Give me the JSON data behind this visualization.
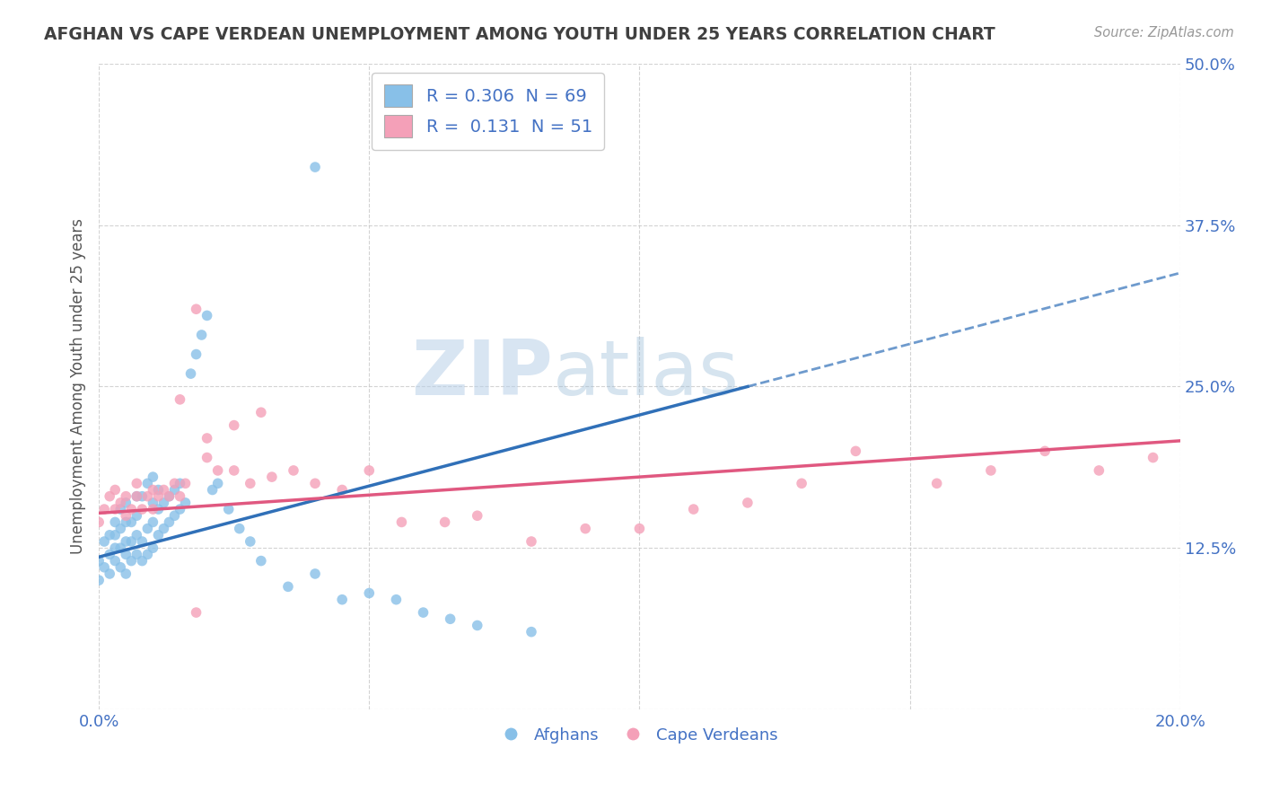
{
  "title": "AFGHAN VS CAPE VERDEAN UNEMPLOYMENT AMONG YOUTH UNDER 25 YEARS CORRELATION CHART",
  "source": "Source: ZipAtlas.com",
  "ylabel": "Unemployment Among Youth under 25 years",
  "xlim": [
    0.0,
    0.2
  ],
  "ylim": [
    0.0,
    0.5
  ],
  "xticks": [
    0.0,
    0.05,
    0.1,
    0.15,
    0.2
  ],
  "xtick_labels": [
    "0.0%",
    "",
    "",
    "",
    "20.0%"
  ],
  "yticks": [
    0.0,
    0.125,
    0.25,
    0.375,
    0.5
  ],
  "ytick_labels": [
    "",
    "12.5%",
    "25.0%",
    "37.5%",
    "50.0%"
  ],
  "blue_color": "#88c0e8",
  "pink_color": "#f4a0b8",
  "blue_line_color": "#3070b8",
  "pink_line_color": "#e05880",
  "watermark_zip": "ZIP",
  "watermark_atlas": "atlas",
  "legend_blue_r": "0.306",
  "legend_blue_n": "69",
  "legend_pink_r": "0.131",
  "legend_pink_n": "51",
  "blue_label": "Afghans",
  "pink_label": "Cape Verdeans",
  "grid_color": "#c8c8c8",
  "background_color": "#ffffff",
  "title_color": "#404040",
  "axis_label_color": "#555555",
  "tick_label_color": "#4472c4",
  "blue_scatter_x": [
    0.0,
    0.0,
    0.001,
    0.001,
    0.002,
    0.002,
    0.002,
    0.003,
    0.003,
    0.003,
    0.003,
    0.004,
    0.004,
    0.004,
    0.004,
    0.005,
    0.005,
    0.005,
    0.005,
    0.005,
    0.006,
    0.006,
    0.006,
    0.007,
    0.007,
    0.007,
    0.007,
    0.008,
    0.008,
    0.008,
    0.009,
    0.009,
    0.009,
    0.01,
    0.01,
    0.01,
    0.01,
    0.011,
    0.011,
    0.011,
    0.012,
    0.012,
    0.013,
    0.013,
    0.014,
    0.014,
    0.015,
    0.015,
    0.016,
    0.017,
    0.018,
    0.019,
    0.02,
    0.021,
    0.022,
    0.024,
    0.026,
    0.028,
    0.03,
    0.035,
    0.04,
    0.045,
    0.05,
    0.055,
    0.06,
    0.065,
    0.07,
    0.08,
    0.04
  ],
  "blue_scatter_y": [
    0.1,
    0.115,
    0.11,
    0.13,
    0.105,
    0.12,
    0.135,
    0.115,
    0.125,
    0.135,
    0.145,
    0.11,
    0.125,
    0.14,
    0.155,
    0.105,
    0.12,
    0.13,
    0.145,
    0.16,
    0.115,
    0.13,
    0.145,
    0.12,
    0.135,
    0.15,
    0.165,
    0.115,
    0.13,
    0.165,
    0.12,
    0.14,
    0.175,
    0.125,
    0.145,
    0.16,
    0.18,
    0.135,
    0.155,
    0.17,
    0.14,
    0.16,
    0.145,
    0.165,
    0.15,
    0.17,
    0.155,
    0.175,
    0.16,
    0.26,
    0.275,
    0.29,
    0.305,
    0.17,
    0.175,
    0.155,
    0.14,
    0.13,
    0.115,
    0.095,
    0.105,
    0.085,
    0.09,
    0.085,
    0.075,
    0.07,
    0.065,
    0.06,
    0.42
  ],
  "pink_scatter_x": [
    0.0,
    0.001,
    0.002,
    0.003,
    0.003,
    0.004,
    0.005,
    0.005,
    0.006,
    0.007,
    0.007,
    0.008,
    0.009,
    0.01,
    0.01,
    0.011,
    0.012,
    0.013,
    0.014,
    0.015,
    0.016,
    0.018,
    0.02,
    0.022,
    0.025,
    0.028,
    0.032,
    0.036,
    0.04,
    0.045,
    0.05,
    0.056,
    0.064,
    0.07,
    0.08,
    0.09,
    0.1,
    0.11,
    0.12,
    0.13,
    0.14,
    0.155,
    0.165,
    0.175,
    0.185,
    0.195,
    0.015,
    0.02,
    0.025,
    0.03,
    0.018
  ],
  "pink_scatter_y": [
    0.145,
    0.155,
    0.165,
    0.155,
    0.17,
    0.16,
    0.15,
    0.165,
    0.155,
    0.165,
    0.175,
    0.155,
    0.165,
    0.155,
    0.17,
    0.165,
    0.17,
    0.165,
    0.175,
    0.165,
    0.175,
    0.31,
    0.195,
    0.185,
    0.185,
    0.175,
    0.18,
    0.185,
    0.175,
    0.17,
    0.185,
    0.145,
    0.145,
    0.15,
    0.13,
    0.14,
    0.14,
    0.155,
    0.16,
    0.175,
    0.2,
    0.175,
    0.185,
    0.2,
    0.185,
    0.195,
    0.24,
    0.21,
    0.22,
    0.23,
    0.075
  ]
}
